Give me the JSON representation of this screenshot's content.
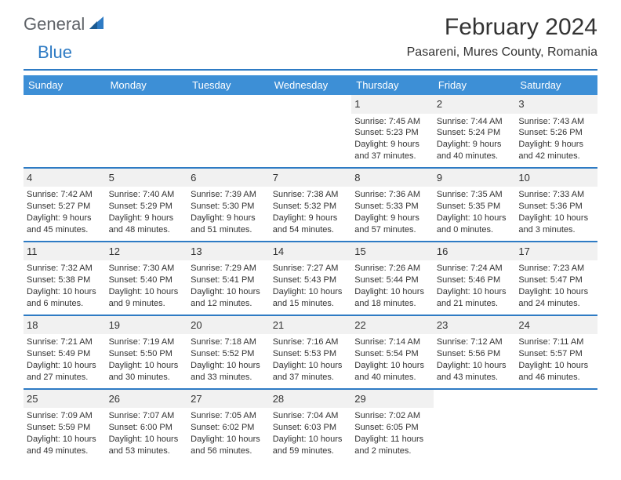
{
  "logo": {
    "textA": "General",
    "textB": "Blue"
  },
  "title": "February 2024",
  "location": "Pasareni, Mures County, Romania",
  "colors": {
    "accent": "#2e7bc4",
    "headerBar": "#3d8fd6",
    "dayBg": "#f1f1f1",
    "text": "#333333",
    "logoGrey": "#5f6368"
  },
  "weekdays": [
    "Sunday",
    "Monday",
    "Tuesday",
    "Wednesday",
    "Thursday",
    "Friday",
    "Saturday"
  ],
  "weeks": [
    [
      null,
      null,
      null,
      null,
      {
        "d": "1",
        "sr": "Sunrise: 7:45 AM",
        "ss": "Sunset: 5:23 PM",
        "dl1": "Daylight: 9 hours",
        "dl2": "and 37 minutes."
      },
      {
        "d": "2",
        "sr": "Sunrise: 7:44 AM",
        "ss": "Sunset: 5:24 PM",
        "dl1": "Daylight: 9 hours",
        "dl2": "and 40 minutes."
      },
      {
        "d": "3",
        "sr": "Sunrise: 7:43 AM",
        "ss": "Sunset: 5:26 PM",
        "dl1": "Daylight: 9 hours",
        "dl2": "and 42 minutes."
      }
    ],
    [
      {
        "d": "4",
        "sr": "Sunrise: 7:42 AM",
        "ss": "Sunset: 5:27 PM",
        "dl1": "Daylight: 9 hours",
        "dl2": "and 45 minutes."
      },
      {
        "d": "5",
        "sr": "Sunrise: 7:40 AM",
        "ss": "Sunset: 5:29 PM",
        "dl1": "Daylight: 9 hours",
        "dl2": "and 48 minutes."
      },
      {
        "d": "6",
        "sr": "Sunrise: 7:39 AM",
        "ss": "Sunset: 5:30 PM",
        "dl1": "Daylight: 9 hours",
        "dl2": "and 51 minutes."
      },
      {
        "d": "7",
        "sr": "Sunrise: 7:38 AM",
        "ss": "Sunset: 5:32 PM",
        "dl1": "Daylight: 9 hours",
        "dl2": "and 54 minutes."
      },
      {
        "d": "8",
        "sr": "Sunrise: 7:36 AM",
        "ss": "Sunset: 5:33 PM",
        "dl1": "Daylight: 9 hours",
        "dl2": "and 57 minutes."
      },
      {
        "d": "9",
        "sr": "Sunrise: 7:35 AM",
        "ss": "Sunset: 5:35 PM",
        "dl1": "Daylight: 10 hours",
        "dl2": "and 0 minutes."
      },
      {
        "d": "10",
        "sr": "Sunrise: 7:33 AM",
        "ss": "Sunset: 5:36 PM",
        "dl1": "Daylight: 10 hours",
        "dl2": "and 3 minutes."
      }
    ],
    [
      {
        "d": "11",
        "sr": "Sunrise: 7:32 AM",
        "ss": "Sunset: 5:38 PM",
        "dl1": "Daylight: 10 hours",
        "dl2": "and 6 minutes."
      },
      {
        "d": "12",
        "sr": "Sunrise: 7:30 AM",
        "ss": "Sunset: 5:40 PM",
        "dl1": "Daylight: 10 hours",
        "dl2": "and 9 minutes."
      },
      {
        "d": "13",
        "sr": "Sunrise: 7:29 AM",
        "ss": "Sunset: 5:41 PM",
        "dl1": "Daylight: 10 hours",
        "dl2": "and 12 minutes."
      },
      {
        "d": "14",
        "sr": "Sunrise: 7:27 AM",
        "ss": "Sunset: 5:43 PM",
        "dl1": "Daylight: 10 hours",
        "dl2": "and 15 minutes."
      },
      {
        "d": "15",
        "sr": "Sunrise: 7:26 AM",
        "ss": "Sunset: 5:44 PM",
        "dl1": "Daylight: 10 hours",
        "dl2": "and 18 minutes."
      },
      {
        "d": "16",
        "sr": "Sunrise: 7:24 AM",
        "ss": "Sunset: 5:46 PM",
        "dl1": "Daylight: 10 hours",
        "dl2": "and 21 minutes."
      },
      {
        "d": "17",
        "sr": "Sunrise: 7:23 AM",
        "ss": "Sunset: 5:47 PM",
        "dl1": "Daylight: 10 hours",
        "dl2": "and 24 minutes."
      }
    ],
    [
      {
        "d": "18",
        "sr": "Sunrise: 7:21 AM",
        "ss": "Sunset: 5:49 PM",
        "dl1": "Daylight: 10 hours",
        "dl2": "and 27 minutes."
      },
      {
        "d": "19",
        "sr": "Sunrise: 7:19 AM",
        "ss": "Sunset: 5:50 PM",
        "dl1": "Daylight: 10 hours",
        "dl2": "and 30 minutes."
      },
      {
        "d": "20",
        "sr": "Sunrise: 7:18 AM",
        "ss": "Sunset: 5:52 PM",
        "dl1": "Daylight: 10 hours",
        "dl2": "and 33 minutes."
      },
      {
        "d": "21",
        "sr": "Sunrise: 7:16 AM",
        "ss": "Sunset: 5:53 PM",
        "dl1": "Daylight: 10 hours",
        "dl2": "and 37 minutes."
      },
      {
        "d": "22",
        "sr": "Sunrise: 7:14 AM",
        "ss": "Sunset: 5:54 PM",
        "dl1": "Daylight: 10 hours",
        "dl2": "and 40 minutes."
      },
      {
        "d": "23",
        "sr": "Sunrise: 7:12 AM",
        "ss": "Sunset: 5:56 PM",
        "dl1": "Daylight: 10 hours",
        "dl2": "and 43 minutes."
      },
      {
        "d": "24",
        "sr": "Sunrise: 7:11 AM",
        "ss": "Sunset: 5:57 PM",
        "dl1": "Daylight: 10 hours",
        "dl2": "and 46 minutes."
      }
    ],
    [
      {
        "d": "25",
        "sr": "Sunrise: 7:09 AM",
        "ss": "Sunset: 5:59 PM",
        "dl1": "Daylight: 10 hours",
        "dl2": "and 49 minutes."
      },
      {
        "d": "26",
        "sr": "Sunrise: 7:07 AM",
        "ss": "Sunset: 6:00 PM",
        "dl1": "Daylight: 10 hours",
        "dl2": "and 53 minutes."
      },
      {
        "d": "27",
        "sr": "Sunrise: 7:05 AM",
        "ss": "Sunset: 6:02 PM",
        "dl1": "Daylight: 10 hours",
        "dl2": "and 56 minutes."
      },
      {
        "d": "28",
        "sr": "Sunrise: 7:04 AM",
        "ss": "Sunset: 6:03 PM",
        "dl1": "Daylight: 10 hours",
        "dl2": "and 59 minutes."
      },
      {
        "d": "29",
        "sr": "Sunrise: 7:02 AM",
        "ss": "Sunset: 6:05 PM",
        "dl1": "Daylight: 11 hours",
        "dl2": "and 2 minutes."
      },
      null,
      null
    ]
  ]
}
